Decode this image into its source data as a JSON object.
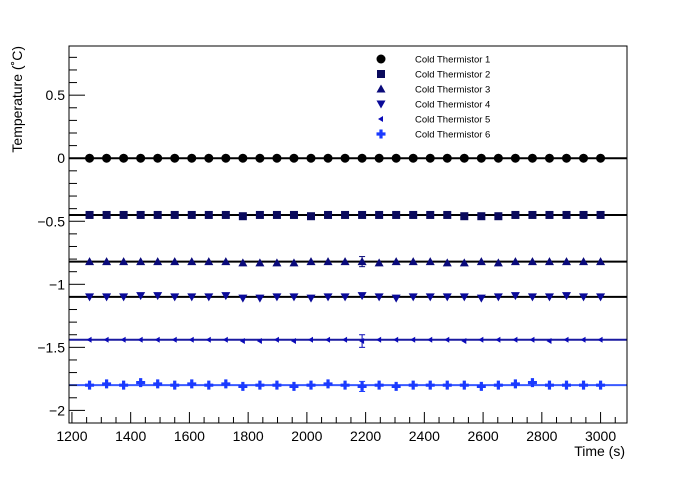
{
  "chart_data": {
    "type": "scatter",
    "title": "",
    "xlabel": "Time (s)",
    "ylabel": "Temperature (˚C)",
    "xlim": [
      1190,
      3090
    ],
    "ylim": [
      -2.1,
      0.89
    ],
    "x_ticks": [
      {
        "value": 1200,
        "label": "1200"
      },
      {
        "value": 1400,
        "label": "1400"
      },
      {
        "value": 1600,
        "label": "1600"
      },
      {
        "value": 1800,
        "label": "1800"
      },
      {
        "value": 2000,
        "label": "2000"
      },
      {
        "value": 2200,
        "label": "2200"
      },
      {
        "value": 2400,
        "label": "2400"
      },
      {
        "value": 2600,
        "label": "2600"
      },
      {
        "value": 2800,
        "label": "2800"
      },
      {
        "value": 3000,
        "label": "3000"
      }
    ],
    "y_ticks": [
      {
        "value": 0.5,
        "label": "0.5"
      },
      {
        "value": 0,
        "label": "0"
      },
      {
        "value": -0.5,
        "label": "−0.5"
      },
      {
        "value": -1,
        "label": "−1"
      },
      {
        "value": -1.5,
        "label": "−1.5"
      },
      {
        "value": -2,
        "label": "−2"
      }
    ],
    "grid": false,
    "legend_position": "top-right",
    "x": [
      1260,
      1318,
      1376,
      1434,
      1492,
      1550,
      1608,
      1666,
      1724,
      1782,
      1840,
      1898,
      1956,
      2014,
      2072,
      2130,
      2188,
      2246,
      2304,
      2362,
      2420,
      2478,
      2536,
      2594,
      2652,
      2710,
      2768,
      2826,
      2884,
      2942,
      3000
    ],
    "series": [
      {
        "name": "Cold Thermistor 1",
        "marker": "circle",
        "color": "#000000",
        "fit_value": 0.0,
        "fit_color": "#000000",
        "values": [
          0,
          0,
          0,
          0,
          0,
          0,
          0,
          0,
          0,
          0,
          0,
          0,
          0,
          0,
          0,
          0,
          0,
          0,
          0,
          0,
          0,
          0,
          0,
          0,
          0,
          0,
          0,
          0,
          0,
          0,
          0
        ],
        "errors": [
          0.01,
          0.01,
          0.01,
          0.01,
          0.01,
          0.01,
          0.01,
          0.01,
          0.01,
          0.01,
          0.01,
          0.01,
          0.01,
          0.01,
          0.01,
          0.01,
          0.01,
          0.01,
          0.01,
          0.01,
          0.01,
          0.01,
          0.01,
          0.01,
          0.01,
          0.01,
          0.01,
          0.01,
          0.01,
          0.01,
          0.01
        ]
      },
      {
        "name": "Cold Thermistor 2",
        "marker": "square",
        "color": "#0a0a5c",
        "fit_value": -0.45,
        "fit_color": "#000000",
        "values": [
          -0.45,
          -0.45,
          -0.45,
          -0.45,
          -0.45,
          -0.45,
          -0.45,
          -0.45,
          -0.45,
          -0.46,
          -0.45,
          -0.45,
          -0.45,
          -0.46,
          -0.45,
          -0.45,
          -0.45,
          -0.45,
          -0.45,
          -0.45,
          -0.45,
          -0.45,
          -0.46,
          -0.46,
          -0.46,
          -0.45,
          -0.45,
          -0.45,
          -0.45,
          -0.45,
          -0.45
        ],
        "errors": [
          0.01,
          0.01,
          0.01,
          0.01,
          0.01,
          0.01,
          0.01,
          0.01,
          0.01,
          0.01,
          0.01,
          0.01,
          0.01,
          0.01,
          0.01,
          0.01,
          0.01,
          0.01,
          0.01,
          0.01,
          0.01,
          0.01,
          0.01,
          0.01,
          0.01,
          0.01,
          0.01,
          0.01,
          0.01,
          0.01,
          0.01
        ]
      },
      {
        "name": "Cold Thermistor 3",
        "marker": "triangle-up",
        "color": "#0a0a7a",
        "fit_value": -0.82,
        "fit_color": "#000000",
        "values": [
          -0.82,
          -0.82,
          -0.82,
          -0.82,
          -0.82,
          -0.82,
          -0.82,
          -0.82,
          -0.82,
          -0.83,
          -0.83,
          -0.83,
          -0.83,
          -0.82,
          -0.82,
          -0.82,
          -0.82,
          -0.83,
          -0.82,
          -0.82,
          -0.82,
          -0.83,
          -0.83,
          -0.82,
          -0.83,
          -0.82,
          -0.82,
          -0.82,
          -0.82,
          -0.82,
          -0.82
        ],
        "errors": [
          0.01,
          0.01,
          0.01,
          0.01,
          0.01,
          0.01,
          0.01,
          0.01,
          0.01,
          0.01,
          0.01,
          0.01,
          0.01,
          0.01,
          0.01,
          0.01,
          0.04,
          0.01,
          0.01,
          0.01,
          0.01,
          0.01,
          0.01,
          0.01,
          0.01,
          0.01,
          0.01,
          0.01,
          0.01,
          0.01,
          0.01
        ]
      },
      {
        "name": "Cold Thermistor 4",
        "marker": "triangle-down",
        "color": "#0a0a99",
        "fit_value": -1.1,
        "fit_color": "#000000",
        "values": [
          -1.1,
          -1.1,
          -1.1,
          -1.09,
          -1.09,
          -1.1,
          -1.1,
          -1.1,
          -1.09,
          -1.11,
          -1.11,
          -1.1,
          -1.1,
          -1.11,
          -1.1,
          -1.1,
          -1.09,
          -1.1,
          -1.11,
          -1.1,
          -1.1,
          -1.1,
          -1.1,
          -1.11,
          -1.1,
          -1.09,
          -1.1,
          -1.1,
          -1.09,
          -1.1,
          -1.1
        ],
        "errors": [
          0.01,
          0.01,
          0.01,
          0.01,
          0.01,
          0.01,
          0.01,
          0.01,
          0.01,
          0.01,
          0.01,
          0.01,
          0.01,
          0.01,
          0.01,
          0.01,
          0.01,
          0.01,
          0.01,
          0.01,
          0.01,
          0.01,
          0.01,
          0.01,
          0.01,
          0.01,
          0.01,
          0.01,
          0.01,
          0.01,
          0.01
        ]
      },
      {
        "name": "Cold Thermistor 5",
        "marker": "triangle-left",
        "color": "#0a0ab8",
        "fit_value": -1.44,
        "fit_color": "#1a1aa0",
        "values": [
          -1.44,
          -1.44,
          -1.44,
          -1.44,
          -1.44,
          -1.44,
          -1.44,
          -1.44,
          -1.44,
          -1.45,
          -1.45,
          -1.44,
          -1.45,
          -1.44,
          -1.44,
          -1.44,
          -1.45,
          -1.44,
          -1.44,
          -1.44,
          -1.44,
          -1.44,
          -1.45,
          -1.44,
          -1.44,
          -1.44,
          -1.44,
          -1.45,
          -1.44,
          -1.44,
          -1.44
        ],
        "errors": [
          0.01,
          0.01,
          0.01,
          0.01,
          0.01,
          0.01,
          0.01,
          0.01,
          0.01,
          0.01,
          0.01,
          0.03,
          0.01,
          0.01,
          0.01,
          0.01,
          0.05,
          0.01,
          0.01,
          0.01,
          0.01,
          0.01,
          0.01,
          0.01,
          0.01,
          0.01,
          0.01,
          0.03,
          0.01,
          0.01,
          0.01
        ]
      },
      {
        "name": "Cold Thermistor 6",
        "marker": "cross",
        "color": "#1a3aff",
        "fit_value": -1.8,
        "fit_color": "#3a5aff",
        "values": [
          -1.8,
          -1.79,
          -1.8,
          -1.78,
          -1.79,
          -1.8,
          -1.79,
          -1.8,
          -1.79,
          -1.81,
          -1.8,
          -1.8,
          -1.81,
          -1.8,
          -1.79,
          -1.8,
          -1.81,
          -1.8,
          -1.81,
          -1.8,
          -1.8,
          -1.8,
          -1.8,
          -1.81,
          -1.8,
          -1.79,
          -1.78,
          -1.8,
          -1.8,
          -1.8,
          -1.8
        ],
        "errors": [
          0.03,
          0.02,
          0.02,
          0.02,
          0.02,
          0.02,
          0.02,
          0.02,
          0.03,
          0.02,
          0.02,
          0.03,
          0.02,
          0.02,
          0.03,
          0.02,
          0.04,
          0.02,
          0.03,
          0.02,
          0.02,
          0.02,
          0.02,
          0.03,
          0.02,
          0.02,
          0.03,
          0.02,
          0.03,
          0.02,
          0.02
        ]
      }
    ]
  }
}
